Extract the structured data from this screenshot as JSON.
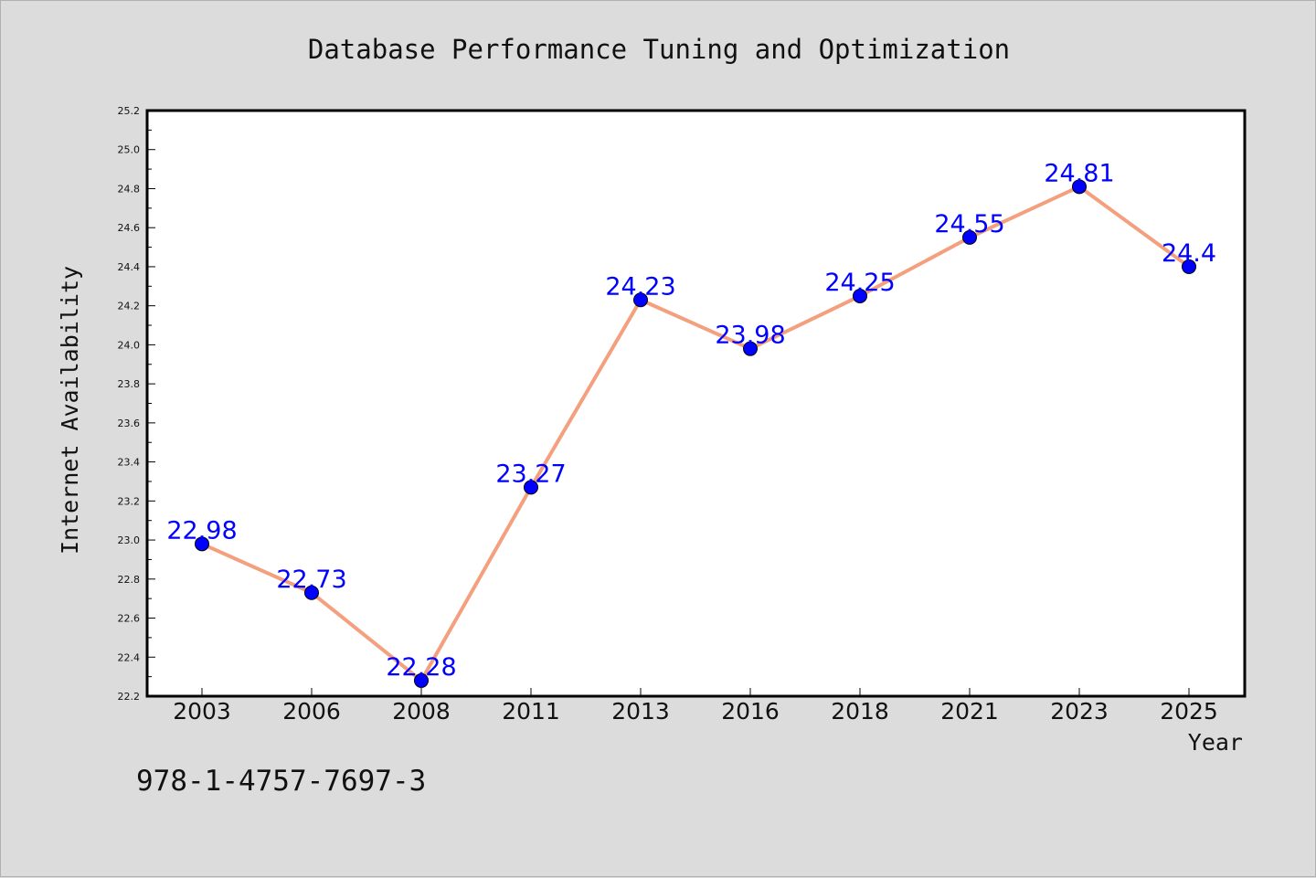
{
  "chart_data": {
    "type": "line",
    "title": "Database Performance Tuning and Optimization",
    "xlabel": "Year",
    "ylabel": "Internet Availability",
    "categories": [
      "2003",
      "2006",
      "2008",
      "2011",
      "2013",
      "2016",
      "2018",
      "2021",
      "2023",
      "2025"
    ],
    "series": [
      {
        "values": [
          22.98,
          22.73,
          22.28,
          23.27,
          24.23,
          23.98,
          24.25,
          24.55,
          24.81,
          24.4
        ],
        "labels": [
          "22.98",
          "22.73",
          "22.28",
          "23.27",
          "24.23",
          "23.98",
          "24.25",
          "24.55",
          "24.81",
          "24.4"
        ],
        "line_color": "#f4a07e",
        "marker_color": "#0000ff"
      }
    ],
    "ylim": [
      22.2,
      25.2
    ],
    "yticks": [
      "22.2",
      "22.4",
      "22.6",
      "22.8",
      "23.0",
      "23.2",
      "23.4",
      "23.6",
      "23.8",
      "24.0",
      "24.2",
      "24.4",
      "24.6",
      "24.8",
      "25.0",
      "25.2"
    ],
    "grid": false,
    "legend": "none",
    "data_label_color": "#0000ff"
  },
  "footer": {
    "isbn": "978-1-4757-7697-3"
  },
  "colors": {
    "background": "#dcdcdc",
    "plot_background": "#ffffff",
    "line": "#f4a07e",
    "marker": "#0000ff"
  }
}
